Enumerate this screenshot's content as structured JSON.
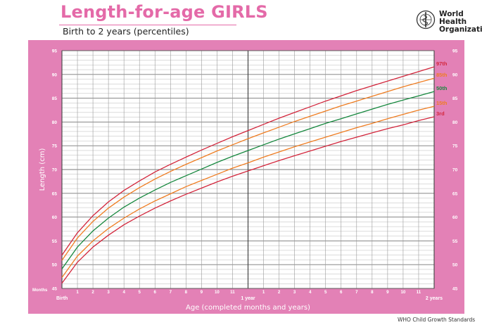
{
  "header": {
    "title": "Length-for-age GIRLS",
    "subtitle": "Birth to 2 years (percentiles)",
    "org_line1": "World Health",
    "org_line2": "Organization"
  },
  "footer": {
    "text": "WHO Child Growth Standards"
  },
  "colors": {
    "panel": "#e381b6",
    "grid": "#888888",
    "p97": "#d3263c",
    "p85": "#ef7d22",
    "p50": "#16883e",
    "p15": "#ef7d22",
    "p3": "#d3263c"
  },
  "chart_data": {
    "type": "line",
    "title": "Length-for-age GIRLS",
    "subtitle": "Birth to 2 years (percentiles)",
    "xlabel": "Age (completed months and years)",
    "ylabel": "Length (cm)",
    "x_unit_label": "Months",
    "xlim": [
      0,
      24
    ],
    "ylim": [
      45,
      95
    ],
    "y_ticks": [
      45,
      50,
      55,
      60,
      65,
      70,
      75,
      80,
      85,
      90,
      95
    ],
    "x_tick_labels": [
      "Birth",
      "1",
      "2",
      "3",
      "4",
      "5",
      "6",
      "7",
      "8",
      "9",
      "10",
      "11",
      "1 year",
      "1",
      "2",
      "3",
      "4",
      "5",
      "6",
      "7",
      "8",
      "9",
      "10",
      "11",
      "2 years"
    ],
    "grid": true,
    "legend": "right",
    "x": [
      0,
      1,
      2,
      3,
      4,
      5,
      6,
      7,
      8,
      9,
      10,
      11,
      12,
      13,
      14,
      15,
      16,
      17,
      18,
      19,
      20,
      21,
      22,
      23,
      24
    ],
    "series": [
      {
        "name": "97th",
        "color": "#d3263c",
        "values": [
          52.0,
          56.7,
          60.3,
          63.2,
          65.6,
          67.6,
          69.5,
          71.1,
          72.6,
          74.1,
          75.5,
          76.9,
          78.2,
          79.5,
          80.8,
          82.0,
          83.2,
          84.4,
          85.5,
          86.6,
          87.6,
          88.6,
          89.6,
          90.6,
          91.6
        ]
      },
      {
        "name": "85th",
        "color": "#ef7d22",
        "values": [
          50.9,
          55.6,
          59.1,
          61.9,
          64.2,
          66.2,
          68.0,
          69.6,
          71.1,
          72.5,
          73.9,
          75.2,
          76.5,
          77.7,
          78.9,
          80.1,
          81.2,
          82.3,
          83.4,
          84.4,
          85.4,
          86.4,
          87.4,
          88.3,
          89.2
        ]
      },
      {
        "name": "50th",
        "color": "#16883e",
        "values": [
          49.1,
          53.7,
          57.1,
          59.8,
          62.1,
          64.0,
          65.7,
          67.3,
          68.7,
          70.1,
          71.5,
          72.8,
          74.0,
          75.2,
          76.4,
          77.5,
          78.6,
          79.7,
          80.7,
          81.7,
          82.7,
          83.7,
          84.6,
          85.5,
          86.4
        ]
      },
      {
        "name": "15th",
        "color": "#ef7d22",
        "values": [
          47.3,
          51.8,
          55.0,
          57.6,
          59.8,
          61.7,
          63.4,
          64.9,
          66.4,
          67.7,
          69.0,
          70.3,
          71.4,
          72.6,
          73.7,
          74.8,
          75.8,
          76.8,
          77.8,
          78.8,
          79.7,
          80.7,
          81.6,
          82.5,
          83.3
        ]
      },
      {
        "name": "3rd",
        "color": "#d3263c",
        "values": [
          46.1,
          50.5,
          53.7,
          56.2,
          58.4,
          60.2,
          61.9,
          63.4,
          64.8,
          66.1,
          67.4,
          68.6,
          69.7,
          70.8,
          71.9,
          72.9,
          73.9,
          74.9,
          75.9,
          76.8,
          77.7,
          78.6,
          79.4,
          80.3,
          81.1
        ]
      }
    ]
  }
}
